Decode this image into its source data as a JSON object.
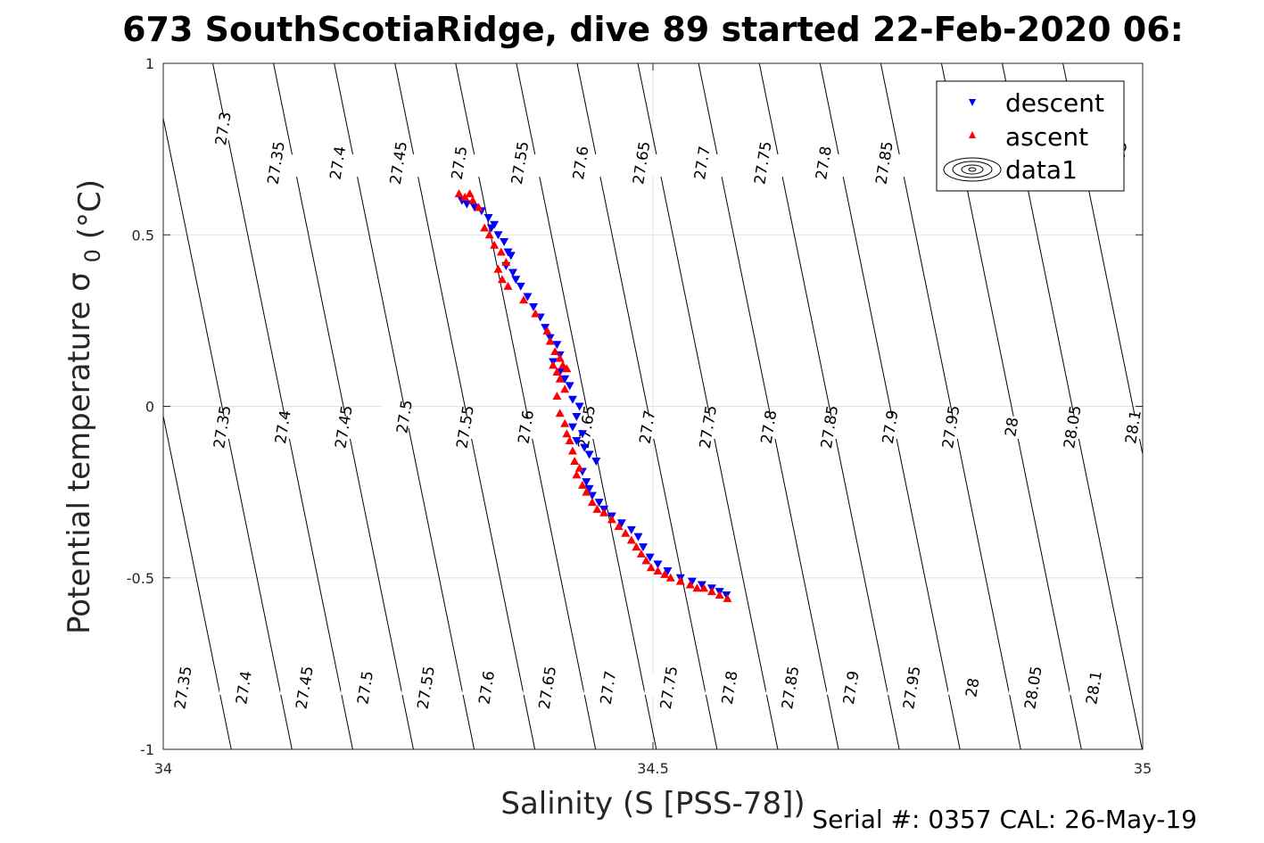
{
  "chart_data": {
    "type": "scatter",
    "title": "673 SouthScotiaRidge, dive 89 started 22-Feb-2020 06:",
    "xlabel": "Salinity (S [PSS-78])",
    "ylabel": "Potential temperature",
    "ylabel_symbol": "σ",
    "ylabel_subscript": "0",
    "ylabel_unit": "(°C)",
    "xlim": [
      34,
      35
    ],
    "ylim": [
      -1,
      1
    ],
    "x_ticks": [
      34,
      34.5,
      35
    ],
    "x_tick_labels": [
      "34",
      "34.5",
      "35"
    ],
    "y_ticks": [
      -1,
      -0.5,
      0,
      0.5,
      1
    ],
    "y_tick_labels": [
      "-1",
      "-0.5",
      "0",
      "0.5",
      "1"
    ],
    "grid": true,
    "annotation": "Serial #: 0357  CAL: 26-May-19",
    "legend": {
      "placement": "top-right",
      "entries": [
        {
          "name": "descent",
          "marker": "triangle-down",
          "color": "#0000ff"
        },
        {
          "name": "ascent",
          "marker": "triangle-up",
          "color": "#ff0000"
        },
        {
          "name": "data1",
          "marker": "contour",
          "color": "#000000"
        }
      ]
    },
    "density_contours": {
      "levels": [
        27.3,
        27.35,
        27.4,
        27.45,
        27.5,
        27.55,
        27.6,
        27.65,
        27.7,
        27.75,
        27.8,
        27.85,
        27.9,
        27.95,
        28,
        28.05,
        28.1
      ],
      "labels_top": [
        {
          "text": "27.3",
          "x": 34.061,
          "y": 0.81
        },
        {
          "text": "27.35",
          "x": 34.115,
          "y": 0.71
        },
        {
          "text": "27.4",
          "x": 34.178,
          "y": 0.71
        },
        {
          "text": "27.45",
          "x": 34.24,
          "y": 0.71
        },
        {
          "text": "27.5",
          "x": 34.302,
          "y": 0.71
        },
        {
          "text": "27.55",
          "x": 34.364,
          "y": 0.71
        },
        {
          "text": "27.6",
          "x": 34.426,
          "y": 0.71
        },
        {
          "text": "27.65",
          "x": 34.488,
          "y": 0.71
        },
        {
          "text": "27.7",
          "x": 34.55,
          "y": 0.71
        },
        {
          "text": "27.75",
          "x": 34.612,
          "y": 0.71
        },
        {
          "text": "27.8",
          "x": 34.674,
          "y": 0.71
        },
        {
          "text": "27.85",
          "x": 34.736,
          "y": 0.71
        },
        {
          "text": "28.05",
          "x": 34.975,
          "y": 0.71
        }
      ],
      "labels_mid": [
        {
          "text": "27.35",
          "x": 34.06,
          "y": -0.06
        },
        {
          "text": "27.4",
          "x": 34.122,
          "y": -0.06
        },
        {
          "text": "27.45",
          "x": 34.184,
          "y": -0.06
        },
        {
          "text": "27.5",
          "x": 34.246,
          "y": -0.03
        },
        {
          "text": "27.55",
          "x": 34.308,
          "y": -0.06
        },
        {
          "text": "27.6",
          "x": 34.37,
          "y": -0.06
        },
        {
          "text": "27.65",
          "x": 34.432,
          "y": -0.06
        },
        {
          "text": "27.7",
          "x": 34.494,
          "y": -0.06
        },
        {
          "text": "27.75",
          "x": 34.556,
          "y": -0.06
        },
        {
          "text": "27.8",
          "x": 34.618,
          "y": -0.06
        },
        {
          "text": "27.85",
          "x": 34.68,
          "y": -0.06
        },
        {
          "text": "27.9",
          "x": 34.742,
          "y": -0.06
        },
        {
          "text": "27.95",
          "x": 34.804,
          "y": -0.06
        },
        {
          "text": "28",
          "x": 34.866,
          "y": -0.06
        },
        {
          "text": "28.05",
          "x": 34.928,
          "y": -0.06
        },
        {
          "text": "28.1",
          "x": 34.99,
          "y": -0.06
        }
      ],
      "labels_bottom": [
        {
          "text": "27.35",
          "x": 34.02,
          "y": -0.82
        },
        {
          "text": "27.4",
          "x": 34.082,
          "y": -0.82
        },
        {
          "text": "27.45",
          "x": 34.144,
          "y": -0.82
        },
        {
          "text": "27.5",
          "x": 34.206,
          "y": -0.82
        },
        {
          "text": "27.55",
          "x": 34.268,
          "y": -0.82
        },
        {
          "text": "27.6",
          "x": 34.33,
          "y": -0.82
        },
        {
          "text": "27.65",
          "x": 34.392,
          "y": -0.82
        },
        {
          "text": "27.7",
          "x": 34.454,
          "y": -0.82
        },
        {
          "text": "27.75",
          "x": 34.516,
          "y": -0.82
        },
        {
          "text": "27.8",
          "x": 34.578,
          "y": -0.82
        },
        {
          "text": "27.85",
          "x": 34.64,
          "y": -0.82
        },
        {
          "text": "27.9",
          "x": 34.702,
          "y": -0.82
        },
        {
          "text": "27.95",
          "x": 34.764,
          "y": -0.82
        },
        {
          "text": "28",
          "x": 34.826,
          "y": -0.82
        },
        {
          "text": "28.05",
          "x": 34.888,
          "y": -0.82
        },
        {
          "text": "28.1",
          "x": 34.95,
          "y": -0.82
        }
      ]
    },
    "series": [
      {
        "name": "descent",
        "marker": "triangle-down",
        "color": "#0000ff",
        "points": [
          [
            34.305,
            0.6
          ],
          [
            34.31,
            0.59
          ],
          [
            34.318,
            0.58
          ],
          [
            34.325,
            0.57
          ],
          [
            34.332,
            0.55
          ],
          [
            34.338,
            0.53
          ],
          [
            34.335,
            0.52
          ],
          [
            34.342,
            0.5
          ],
          [
            34.348,
            0.48
          ],
          [
            34.352,
            0.45
          ],
          [
            34.355,
            0.44
          ],
          [
            34.35,
            0.41
          ],
          [
            34.357,
            0.39
          ],
          [
            34.36,
            0.37
          ],
          [
            34.365,
            0.35
          ],
          [
            34.372,
            0.32
          ],
          [
            34.378,
            0.29
          ],
          [
            34.385,
            0.26
          ],
          [
            34.39,
            0.23
          ],
          [
            34.395,
            0.2
          ],
          [
            34.402,
            0.18
          ],
          [
            34.405,
            0.15
          ],
          [
            34.398,
            0.13
          ],
          [
            34.405,
            0.1
          ],
          [
            34.41,
            0.08
          ],
          [
            34.415,
            0.06
          ],
          [
            34.418,
            0.02
          ],
          [
            34.425,
            0.0
          ],
          [
            34.422,
            -0.03
          ],
          [
            34.418,
            -0.06
          ],
          [
            34.428,
            -0.08
          ],
          [
            34.422,
            -0.1
          ],
          [
            34.43,
            -0.12
          ],
          [
            34.435,
            -0.14
          ],
          [
            34.442,
            -0.16
          ],
          [
            34.428,
            -0.19
          ],
          [
            34.432,
            -0.22
          ],
          [
            34.435,
            -0.24
          ],
          [
            34.438,
            -0.26
          ],
          [
            34.445,
            -0.28
          ],
          [
            34.45,
            -0.3
          ],
          [
            34.458,
            -0.32
          ],
          [
            34.468,
            -0.34
          ],
          [
            34.478,
            -0.36
          ],
          [
            34.485,
            -0.38
          ],
          [
            34.49,
            -0.41
          ],
          [
            34.497,
            -0.44
          ],
          [
            34.505,
            -0.46
          ],
          [
            34.515,
            -0.48
          ],
          [
            34.528,
            -0.5
          ],
          [
            34.54,
            -0.51
          ],
          [
            34.55,
            -0.52
          ],
          [
            34.56,
            -0.53
          ],
          [
            34.568,
            -0.54
          ],
          [
            34.575,
            -0.55
          ]
        ]
      },
      {
        "name": "ascent",
        "marker": "triangle-up",
        "color": "#ff0000",
        "points": [
          [
            34.302,
            0.62
          ],
          [
            34.308,
            0.61
          ],
          [
            34.313,
            0.62
          ],
          [
            34.316,
            0.6
          ],
          [
            34.322,
            0.58
          ],
          [
            34.328,
            0.52
          ],
          [
            34.333,
            0.5
          ],
          [
            34.338,
            0.47
          ],
          [
            34.345,
            0.45
          ],
          [
            34.35,
            0.42
          ],
          [
            34.342,
            0.4
          ],
          [
            34.346,
            0.37
          ],
          [
            34.352,
            0.35
          ],
          [
            34.368,
            0.31
          ],
          [
            34.38,
            0.27
          ],
          [
            34.392,
            0.22
          ],
          [
            34.395,
            0.19
          ],
          [
            34.4,
            0.16
          ],
          [
            34.405,
            0.14
          ],
          [
            34.398,
            0.12
          ],
          [
            34.402,
            0.1
          ],
          [
            34.408,
            0.12
          ],
          [
            34.412,
            0.11
          ],
          [
            34.405,
            0.08
          ],
          [
            34.41,
            0.05
          ],
          [
            34.402,
            0.03
          ],
          [
            34.405,
            -0.02
          ],
          [
            34.41,
            -0.05
          ],
          [
            34.412,
            -0.08
          ],
          [
            34.415,
            -0.1
          ],
          [
            34.418,
            -0.13
          ],
          [
            34.42,
            -0.16
          ],
          [
            34.425,
            -0.18
          ],
          [
            34.422,
            -0.2
          ],
          [
            34.428,
            -0.23
          ],
          [
            34.432,
            -0.25
          ],
          [
            34.438,
            -0.28
          ],
          [
            34.443,
            -0.3
          ],
          [
            34.45,
            -0.31
          ],
          [
            34.458,
            -0.33
          ],
          [
            34.465,
            -0.35
          ],
          [
            34.472,
            -0.37
          ],
          [
            34.478,
            -0.39
          ],
          [
            34.483,
            -0.41
          ],
          [
            34.488,
            -0.43
          ],
          [
            34.493,
            -0.45
          ],
          [
            34.498,
            -0.47
          ],
          [
            34.505,
            -0.48
          ],
          [
            34.512,
            -0.49
          ],
          [
            34.518,
            -0.5
          ],
          [
            34.528,
            -0.51
          ],
          [
            34.538,
            -0.52
          ],
          [
            34.545,
            -0.53
          ],
          [
            34.552,
            -0.53
          ],
          [
            34.56,
            -0.54
          ],
          [
            34.568,
            -0.55
          ],
          [
            34.576,
            -0.56
          ]
        ]
      }
    ]
  }
}
